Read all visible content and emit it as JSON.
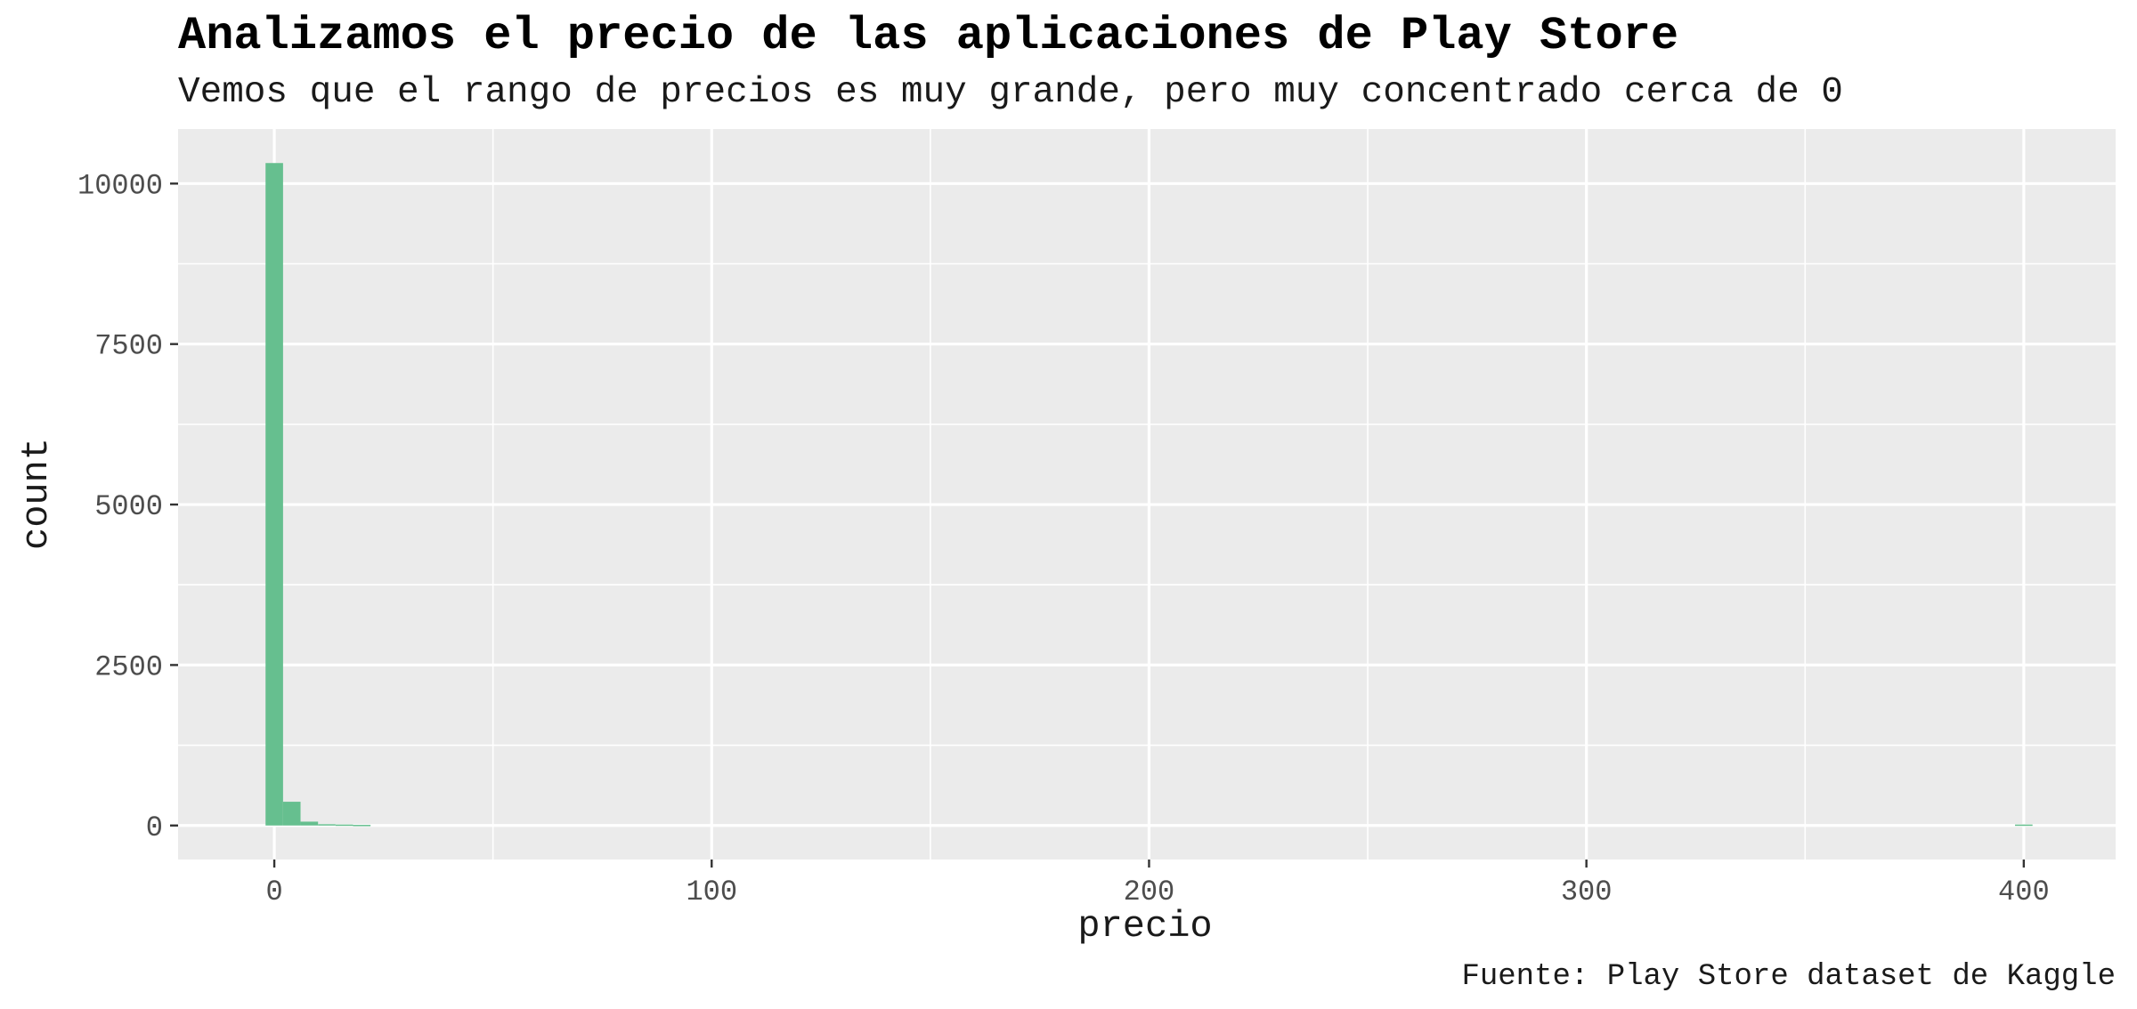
{
  "chart_data": {
    "type": "bar",
    "title": "Analizamos el precio de las aplicaciones de Play Store",
    "subtitle": "Vemos que el rango de precios es muy grande, pero muy concentrado cerca de 0",
    "caption": "Fuente: Play Store dataset de Kaggle",
    "xlabel": "precio",
    "ylabel": "count",
    "xlim": [
      -22,
      421
    ],
    "ylim": [
      -530,
      10850
    ],
    "x_ticks": [
      0,
      100,
      200,
      300,
      400
    ],
    "x_tick_labels": [
      "0",
      "100",
      "200",
      "300",
      "400"
    ],
    "y_ticks": [
      0,
      2500,
      5000,
      7500,
      10000
    ],
    "y_tick_labels": [
      "0",
      "2500",
      "5000",
      "7500",
      "10000"
    ],
    "grid": true,
    "bins": [
      {
        "x0": -2,
        "x1": 2,
        "count": 10320
      },
      {
        "x0": 2,
        "x1": 6,
        "count": 370
      },
      {
        "x0": 6,
        "x1": 10,
        "count": 60
      },
      {
        "x0": 10,
        "x1": 14,
        "count": 20
      },
      {
        "x0": 14,
        "x1": 18,
        "count": 15
      },
      {
        "x0": 18,
        "x1": 22,
        "count": 10
      },
      {
        "x0": 398,
        "x1": 402,
        "count": 15
      }
    ],
    "colors": {
      "bar": "#66bf8f",
      "panel": "#ebebeb",
      "grid": "#ffffff",
      "tick_label": "#4d4d4d",
      "text": "#1a1a1a"
    }
  }
}
